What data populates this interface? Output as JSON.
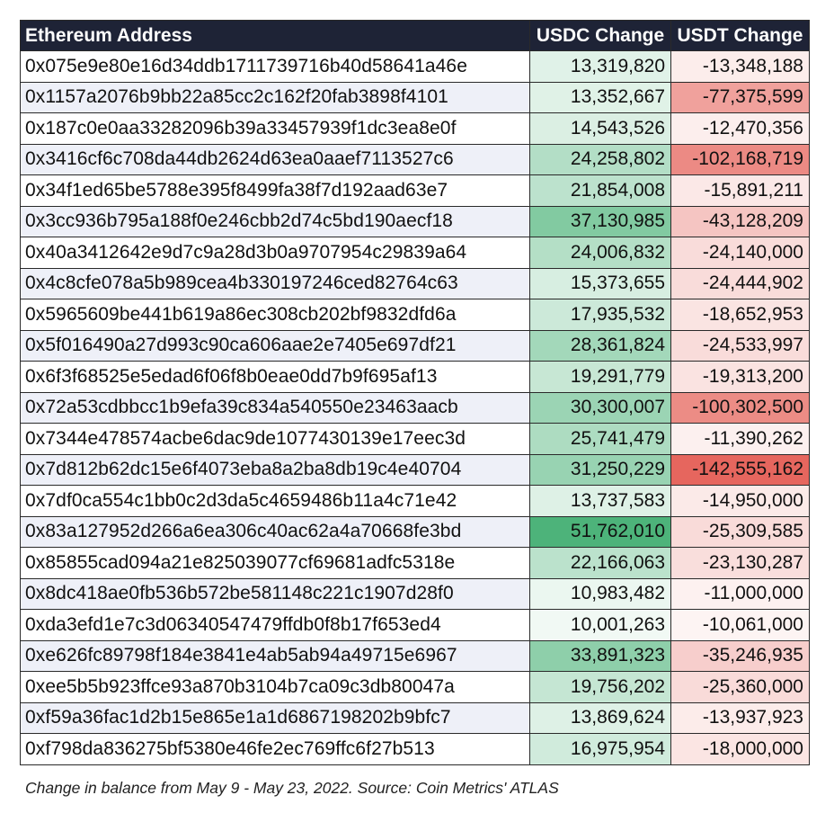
{
  "chart_data": {
    "type": "table",
    "title": "",
    "columns": [
      "Ethereum Address",
      "USDC Change",
      "USDT Change"
    ],
    "rows": [
      {
        "address": "0x075e9e80e16d34ddb1711739716b40d58641a46e",
        "usdc": 13319820,
        "usdt": -13348188
      },
      {
        "address": "0x1157a2076b9bb22a85cc2c162f20fab3898f4101",
        "usdc": 13352667,
        "usdt": -77375599
      },
      {
        "address": "0x187c0e0aa33282096b39a33457939f1dc3ea8e0f",
        "usdc": 14543526,
        "usdt": -12470356
      },
      {
        "address": "0x3416cf6c708da44db2624d63ea0aaef7113527c6",
        "usdc": 24258802,
        "usdt": -102168719
      },
      {
        "address": "0x34f1ed65be5788e395f8499fa38f7d192aad63e7",
        "usdc": 21854008,
        "usdt": -15891211
      },
      {
        "address": "0x3cc936b795a188f0e246cbb2d74c5bd190aecf18",
        "usdc": 37130985,
        "usdt": -43128209
      },
      {
        "address": "0x40a3412642e9d7c9a28d3b0a9707954c29839a64",
        "usdc": 24006832,
        "usdt": -24140000
      },
      {
        "address": "0x4c8cfe078a5b989cea4b330197246ced82764c63",
        "usdc": 15373655,
        "usdt": -24444902
      },
      {
        "address": "0x5965609be441b619a86ec308cb202bf9832dfd6a",
        "usdc": 17935532,
        "usdt": -18652953
      },
      {
        "address": "0x5f016490a27d993c90ca606aae2e7405e697df21",
        "usdc": 28361824,
        "usdt": -24533997
      },
      {
        "address": "0x6f3f68525e5edad6f06f8b0eae0dd7b9f695af13",
        "usdc": 19291779,
        "usdt": -19313200
      },
      {
        "address": "0x72a53cdbbcc1b9efa39c834a540550e23463aacb",
        "usdc": 30300007,
        "usdt": -100302500
      },
      {
        "address": "0x7344e478574acbe6dac9de1077430139e17eec3d",
        "usdc": 25741479,
        "usdt": -11390262
      },
      {
        "address": "0x7d812b62dc15e6f4073eba8a2ba8db19c4e40704",
        "usdc": 31250229,
        "usdt": -142555162
      },
      {
        "address": "0x7df0ca554c1bb0c2d3da5c4659486b11a4c71e42",
        "usdc": 13737583,
        "usdt": -14950000
      },
      {
        "address": "0x83a127952d266a6ea306c40ac62a4a70668fe3bd",
        "usdc": 51762010,
        "usdt": -25309585
      },
      {
        "address": "0x85855cad094a21e825039077cf69681adfc5318e",
        "usdc": 22166063,
        "usdt": -23130287
      },
      {
        "address": "0x8dc418ae0fb536b572be581148c221c1907d28f0",
        "usdc": 10983482,
        "usdt": -11000000
      },
      {
        "address": "0xda3efd1e7c3d06340547479ffdb0f8b17f653ed4",
        "usdc": 10001263,
        "usdt": -10061000
      },
      {
        "address": "0xe626fc89798f184e3841e4ab5ab94a49715e6967",
        "usdc": 33891323,
        "usdt": -35246935
      },
      {
        "address": "0xee5b5b923ffce93a870b3104b7ca09c3db80047a",
        "usdc": 19756202,
        "usdt": -25360000
      },
      {
        "address": "0xf59a36fac1d2b15e865e1a1d6867198202b9bfc7",
        "usdc": 13869624,
        "usdt": -13937923
      },
      {
        "address": "0xf798da836275bf5380e46fe2ec769ffc6f27b513",
        "usdc": 16975954,
        "usdt": -18000000
      }
    ],
    "caption": "Change in balance from May 9 - May 23, 2022. Source: Coin Metrics' ATLAS"
  },
  "colors": {
    "header_bg": "#1e2336",
    "header_text": "#ffffff",
    "row_alt_bg": "#eef0f8",
    "positive_scale_light": "#f1f9f4",
    "positive_scale_dark": "#4db37a",
    "negative_scale_light": "#fdf4f3",
    "negative_scale_dark": "#e6665e"
  }
}
